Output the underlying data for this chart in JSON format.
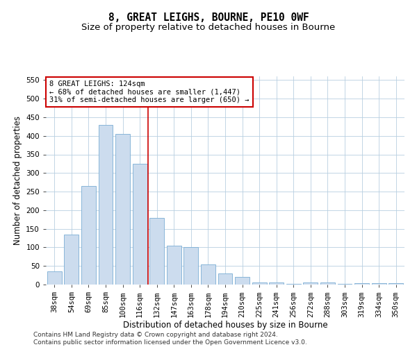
{
  "title": "8, GREAT LEIGHS, BOURNE, PE10 0WF",
  "subtitle": "Size of property relative to detached houses in Bourne",
  "xlabel": "Distribution of detached houses by size in Bourne",
  "ylabel": "Number of detached properties",
  "categories": [
    "38sqm",
    "54sqm",
    "69sqm",
    "85sqm",
    "100sqm",
    "116sqm",
    "132sqm",
    "147sqm",
    "163sqm",
    "178sqm",
    "194sqm",
    "210sqm",
    "225sqm",
    "241sqm",
    "256sqm",
    "272sqm",
    "288sqm",
    "303sqm",
    "319sqm",
    "334sqm",
    "350sqm"
  ],
  "values": [
    35,
    135,
    265,
    430,
    405,
    325,
    180,
    105,
    100,
    55,
    30,
    20,
    5,
    5,
    2,
    5,
    5,
    2,
    3,
    3,
    3
  ],
  "bar_color": "#ccdcee",
  "bar_edge_color": "#7aadd4",
  "vline_x": 5.5,
  "vline_color": "#cc0000",
  "annotation_text": "8 GREAT LEIGHS: 124sqm\n← 68% of detached houses are smaller (1,447)\n31% of semi-detached houses are larger (650) →",
  "annotation_box_color": "#ffffff",
  "annotation_box_edge": "#cc0000",
  "ylim": [
    0,
    560
  ],
  "yticks": [
    0,
    50,
    100,
    150,
    200,
    250,
    300,
    350,
    400,
    450,
    500,
    550
  ],
  "footer": "Contains HM Land Registry data © Crown copyright and database right 2024.\nContains public sector information licensed under the Open Government Licence v3.0.",
  "bg_color": "#ffffff",
  "grid_color": "#b8cfe0",
  "title_fontsize": 10.5,
  "subtitle_fontsize": 9.5,
  "axis_label_fontsize": 8.5,
  "tick_fontsize": 7.5,
  "annotation_fontsize": 7.5,
  "footer_fontsize": 6.5
}
